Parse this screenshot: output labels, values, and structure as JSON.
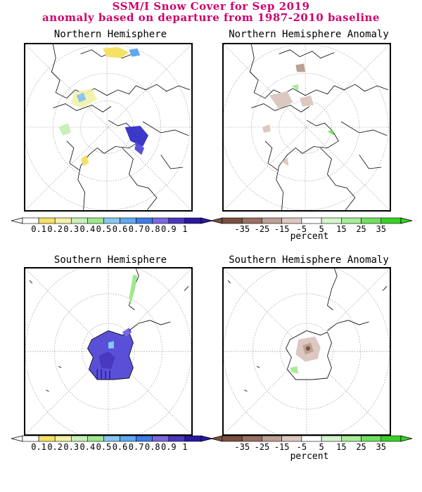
{
  "header": {
    "title": "SSM/I Snow Cover for Sep 2019",
    "subtitle": "anomaly based on departure from 1987-2010 baseline"
  },
  "panels": [
    {
      "id": "nh",
      "title": "Northern Hemisphere"
    },
    {
      "id": "nha",
      "title": "Northern Hemisphere Anomaly"
    },
    {
      "id": "sh",
      "title": "Southern Hemisphere"
    },
    {
      "id": "sha",
      "title": "Southern Hemisphere Anomaly"
    }
  ],
  "colorbars": {
    "snow": {
      "ticks": [
        "0.1",
        "0.2",
        "0.3",
        "0.4",
        "0.5",
        "0.6",
        "0.7",
        "0.8",
        "0.9",
        "1"
      ],
      "colors": [
        "#ffffff",
        "#f6e066",
        "#f2f2a8",
        "#c8f0b8",
        "#a0e890",
        "#88c8f0",
        "#60a8f0",
        "#3c7ce8",
        "#7a68e0",
        "#4a38c0",
        "#2a18a0"
      ]
    },
    "anomaly": {
      "ticks": [
        "-35",
        "-25",
        "-15",
        "-5",
        "5",
        "15",
        "25",
        "35"
      ],
      "colors": [
        "#7a5040",
        "#9a7062",
        "#bca094",
        "#dcc8c0",
        "#ffffff",
        "#d4f4cc",
        "#a8ec98",
        "#70e060",
        "#38d028"
      ],
      "unit": "percent"
    }
  }
}
